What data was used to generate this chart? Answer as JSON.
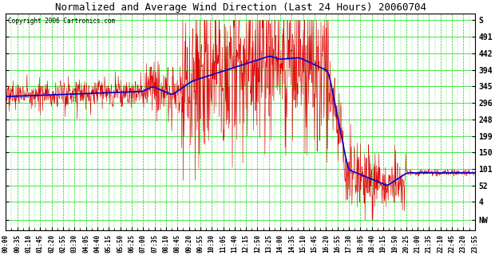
{
  "title": "Normalized and Average Wind Direction (Last 24 Hours) 20060704",
  "copyright": "Copyright 2006 Cartronics.com",
  "bg_color": "#ffffff",
  "plot_bg_color": "#ffffff",
  "grid_color": "#00dd00",
  "red_color": "#dd0000",
  "blue_color": "#0000cc",
  "title_color": "#000000",
  "ytick_labels": [
    "NW",
    "4",
    "52",
    "101",
    "150",
    "199",
    "248",
    "296",
    "345",
    "394",
    "442",
    "491",
    "S"
  ],
  "ytick_values": [
    -49,
    4,
    52,
    101,
    150,
    199,
    248,
    296,
    345,
    394,
    442,
    491,
    540
  ],
  "xtick_labels": [
    "00:00",
    "00:35",
    "01:10",
    "01:45",
    "02:20",
    "02:55",
    "03:30",
    "04:05",
    "04:40",
    "05:15",
    "05:50",
    "06:25",
    "07:00",
    "07:35",
    "08:10",
    "08:45",
    "09:20",
    "09:55",
    "10:30",
    "11:05",
    "11:40",
    "12:15",
    "12:50",
    "13:25",
    "14:00",
    "14:35",
    "15:10",
    "15:45",
    "16:20",
    "16:55",
    "17:30",
    "18:05",
    "18:40",
    "19:15",
    "19:50",
    "20:25",
    "21:00",
    "21:35",
    "22:10",
    "22:45",
    "23:20",
    "23:55"
  ],
  "ylim_low": -80,
  "ylim_high": 560,
  "n_points": 1440,
  "seed": 123
}
